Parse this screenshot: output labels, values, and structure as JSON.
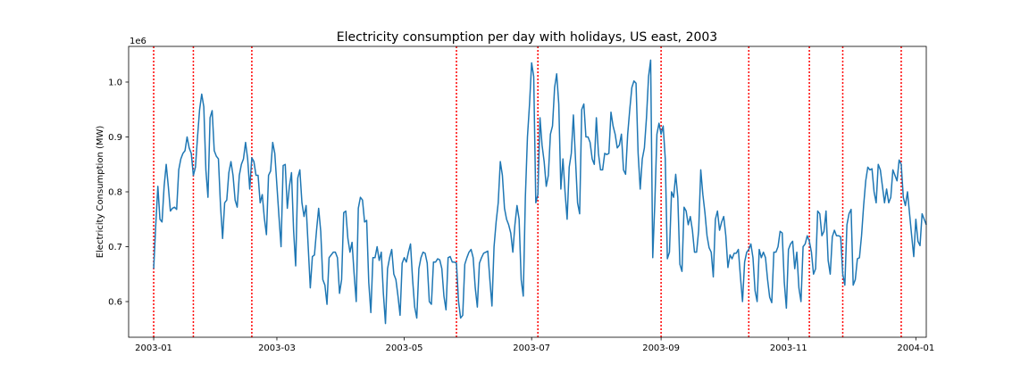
{
  "chart_data": {
    "type": "line",
    "title": "Electricity consumption per day with holidays, US east, 2003",
    "xlabel": "",
    "ylabel": "Electricity Consumption (MW)",
    "y_offset_label": "1e6",
    "xlim": [
      "2002-12-20",
      "2004-01-06"
    ],
    "ylim": [
      0.535,
      1.065
    ],
    "y_scale_factor": 1000000,
    "grid": false,
    "line_color": "#1f77b4",
    "holiday_color": "#ff0000",
    "x_ticks": [
      {
        "date": "2003-01-01",
        "label": "2003-01"
      },
      {
        "date": "2003-03-01",
        "label": "2003-03"
      },
      {
        "date": "2003-05-01",
        "label": "2003-05"
      },
      {
        "date": "2003-07-01",
        "label": "2003-07"
      },
      {
        "date": "2003-09-01",
        "label": "2003-09"
      },
      {
        "date": "2003-11-01",
        "label": "2003-11"
      },
      {
        "date": "2004-01-01",
        "label": "2004-01"
      }
    ],
    "y_ticks": [
      {
        "value": 0.6,
        "label": "0.6"
      },
      {
        "value": 0.7,
        "label": "0.7"
      },
      {
        "value": 0.8,
        "label": "0.8"
      },
      {
        "value": 0.9,
        "label": "0.9"
      },
      {
        "value": 1.0,
        "label": "1.0"
      }
    ],
    "holidays": [
      "2003-01-01",
      "2003-01-20",
      "2003-02-17",
      "2003-05-26",
      "2003-07-04",
      "2003-09-01",
      "2003-10-13",
      "2003-11-11",
      "2003-11-27",
      "2003-12-25"
    ],
    "series": [
      {
        "x_start": "2003-01-01",
        "x_step_days": 1,
        "values": [
          0.66,
          0.74,
          0.81,
          0.75,
          0.745,
          0.81,
          0.85,
          0.81,
          0.765,
          0.77,
          0.772,
          0.768,
          0.84,
          0.86,
          0.87,
          0.875,
          0.9,
          0.88,
          0.87,
          0.83,
          0.845,
          0.9,
          0.95,
          0.978,
          0.955,
          0.84,
          0.79,
          0.935,
          0.948,
          0.875,
          0.865,
          0.86,
          0.775,
          0.715,
          0.78,
          0.785,
          0.835,
          0.855,
          0.83,
          0.785,
          0.772,
          0.83,
          0.85,
          0.86,
          0.89,
          0.86,
          0.805,
          0.862,
          0.855,
          0.83,
          0.83,
          0.78,
          0.795,
          0.752,
          0.722,
          0.83,
          0.838,
          0.89,
          0.87,
          0.812,
          0.755,
          0.7,
          0.848,
          0.85,
          0.77,
          0.81,
          0.835,
          0.73,
          0.665,
          0.825,
          0.84,
          0.78,
          0.755,
          0.775,
          0.7,
          0.625,
          0.682,
          0.685,
          0.73,
          0.77,
          0.728,
          0.64,
          0.63,
          0.595,
          0.68,
          0.685,
          0.69,
          0.69,
          0.68,
          0.615,
          0.64,
          0.762,
          0.765,
          0.715,
          0.69,
          0.708,
          0.65,
          0.6,
          0.77,
          0.79,
          0.785,
          0.745,
          0.748,
          0.635,
          0.58,
          0.68,
          0.68,
          0.7,
          0.675,
          0.69,
          0.615,
          0.56,
          0.66,
          0.68,
          0.695,
          0.65,
          0.64,
          0.61,
          0.575,
          0.67,
          0.68,
          0.672,
          0.69,
          0.705,
          0.64,
          0.59,
          0.57,
          0.66,
          0.68,
          0.69,
          0.688,
          0.67,
          0.6,
          0.595,
          0.672,
          0.672,
          0.678,
          0.676,
          0.66,
          0.61,
          0.585,
          0.68,
          0.682,
          0.672,
          0.672,
          0.67,
          0.6,
          0.57,
          0.575,
          0.668,
          0.68,
          0.69,
          0.695,
          0.68,
          0.625,
          0.59,
          0.67,
          0.68,
          0.688,
          0.69,
          0.692,
          0.64,
          0.592,
          0.7,
          0.745,
          0.78,
          0.855,
          0.83,
          0.77,
          0.75,
          0.74,
          0.725,
          0.69,
          0.74,
          0.775,
          0.75,
          0.64,
          0.61,
          0.79,
          0.9,
          0.96,
          1.035,
          1.01,
          0.78,
          0.795,
          0.935,
          0.885,
          0.855,
          0.81,
          0.83,
          0.905,
          0.92,
          0.99,
          1.015,
          0.96,
          0.805,
          0.86,
          0.8,
          0.75,
          0.845,
          0.87,
          0.94,
          0.86,
          0.78,
          0.76,
          0.95,
          0.96,
          0.9,
          0.9,
          0.89,
          0.86,
          0.85,
          0.935,
          0.87,
          0.84,
          0.84,
          0.87,
          0.868,
          0.87,
          0.945,
          0.92,
          0.905,
          0.88,
          0.885,
          0.905,
          0.84,
          0.832,
          0.905,
          0.95,
          0.99,
          1.002,
          0.998,
          0.87,
          0.805,
          0.86,
          0.88,
          0.935,
          1.01,
          1.04,
          0.68,
          0.78,
          0.905,
          0.925,
          0.905,
          0.92,
          0.86,
          0.678,
          0.69,
          0.8,
          0.79,
          0.832,
          0.79,
          0.668,
          0.655,
          0.772,
          0.765,
          0.74,
          0.755,
          0.73,
          0.69,
          0.69,
          0.73,
          0.84,
          0.795,
          0.762,
          0.72,
          0.698,
          0.69,
          0.645,
          0.75,
          0.765,
          0.73,
          0.745,
          0.755,
          0.72,
          0.662,
          0.685,
          0.678,
          0.688,
          0.688,
          0.695,
          0.645,
          0.6,
          0.672,
          0.69,
          0.695,
          0.705,
          0.68,
          0.62,
          0.6,
          0.695,
          0.68,
          0.69,
          0.68,
          0.64,
          0.608,
          0.598,
          0.69,
          0.69,
          0.7,
          0.728,
          0.725,
          0.635,
          0.588,
          0.695,
          0.705,
          0.71,
          0.66,
          0.69,
          0.625,
          0.6,
          0.7,
          0.705,
          0.72,
          0.71,
          0.69,
          0.65,
          0.66,
          0.765,
          0.76,
          0.72,
          0.728,
          0.765,
          0.675,
          0.65,
          0.718,
          0.73,
          0.72,
          0.72,
          0.718,
          0.65,
          0.63,
          0.74,
          0.76,
          0.768,
          0.63,
          0.64,
          0.678,
          0.68,
          0.72,
          0.775,
          0.82,
          0.845,
          0.84,
          0.842,
          0.8,
          0.78,
          0.85,
          0.84,
          0.81,
          0.78,
          0.805,
          0.78,
          0.79,
          0.84,
          0.83,
          0.82,
          0.858,
          0.85,
          0.79,
          0.775,
          0.8,
          0.76,
          0.72,
          0.682,
          0.75,
          0.71,
          0.702,
          0.76,
          0.75,
          0.74
        ]
      }
    ]
  }
}
